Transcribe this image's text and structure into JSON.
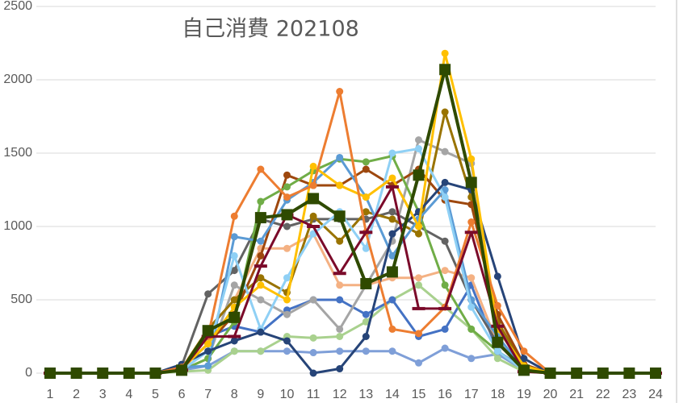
{
  "chart_data": {
    "type": "line",
    "title": "自己消費 202108",
    "categories": [
      "1",
      "2",
      "3",
      "4",
      "5",
      "6",
      "7",
      "8",
      "9",
      "10",
      "11",
      "12",
      "13",
      "14",
      "15",
      "16",
      "17",
      "18",
      "19",
      "20",
      "21",
      "22",
      "23",
      "24"
    ],
    "ylim": [
      0,
      2500
    ],
    "yticks": [
      0,
      500,
      1000,
      1500,
      2000,
      2500
    ],
    "grid": true,
    "series": [
      {
        "color": "#7f9fd8",
        "marker": "circle",
        "values": [
          0,
          0,
          0,
          0,
          0,
          20,
          50,
          150,
          150,
          150,
          140,
          150,
          150,
          150,
          70,
          170,
          100,
          130,
          20,
          0,
          0,
          0,
          0,
          0
        ]
      },
      {
        "color": "#a9d18e",
        "marker": "circle",
        "values": [
          0,
          0,
          0,
          0,
          0,
          10,
          20,
          150,
          150,
          250,
          240,
          250,
          350,
          500,
          600,
          450,
          300,
          100,
          10,
          0,
          0,
          0,
          0,
          0
        ]
      },
      {
        "color": "#4472c4",
        "marker": "circle",
        "values": [
          0,
          0,
          0,
          0,
          0,
          30,
          250,
          320,
          280,
          430,
          500,
          500,
          400,
          500,
          250,
          300,
          600,
          150,
          30,
          0,
          0,
          0,
          0,
          0
        ]
      },
      {
        "color": "#f4b183",
        "marker": "circle",
        "values": [
          0,
          0,
          0,
          0,
          0,
          30,
          300,
          500,
          850,
          850,
          950,
          600,
          600,
          650,
          650,
          700,
          650,
          200,
          40,
          0,
          0,
          0,
          0,
          0
        ]
      },
      {
        "color": "#636363",
        "marker": "circle",
        "values": [
          0,
          0,
          0,
          0,
          0,
          50,
          540,
          700,
          1050,
          1000,
          1050,
          1050,
          1050,
          1100,
          1000,
          900,
          500,
          200,
          30,
          0,
          0,
          0,
          0,
          0
        ]
      },
      {
        "color": "#a5a5a5",
        "marker": "circle",
        "values": [
          0,
          0,
          0,
          0,
          0,
          20,
          100,
          600,
          500,
          400,
          500,
          300,
          600,
          900,
          1590,
          1510,
          1430,
          300,
          40,
          0,
          0,
          0,
          0,
          0
        ]
      },
      {
        "color": "#997300",
        "marker": "circle",
        "values": [
          0,
          0,
          0,
          0,
          0,
          30,
          300,
          500,
          650,
          550,
          1070,
          900,
          1100,
          1050,
          950,
          1780,
          1200,
          350,
          50,
          0,
          0,
          0,
          0,
          0
        ]
      },
      {
        "color": "#9e480e",
        "marker": "circle",
        "values": [
          0,
          0,
          0,
          0,
          0,
          30,
          200,
          400,
          800,
          1350,
          1280,
          1280,
          1390,
          1280,
          1390,
          1180,
          1150,
          400,
          60,
          0,
          0,
          0,
          0,
          0
        ]
      },
      {
        "color": "#70ad47",
        "marker": "circle",
        "values": [
          0,
          0,
          0,
          0,
          0,
          20,
          100,
          350,
          1170,
          1270,
          1380,
          1460,
          1440,
          1480,
          1100,
          600,
          300,
          150,
          20,
          0,
          0,
          0,
          0,
          0
        ]
      },
      {
        "color": "#5b9bd5",
        "marker": "circle",
        "values": [
          0,
          0,
          0,
          0,
          0,
          40,
          50,
          930,
          900,
          1180,
          1300,
          1470,
          1200,
          800,
          1050,
          1250,
          500,
          250,
          30,
          0,
          0,
          0,
          0,
          0
        ]
      },
      {
        "color": "#8fd0f5",
        "marker": "circle",
        "values": [
          0,
          0,
          0,
          0,
          0,
          20,
          150,
          800,
          300,
          650,
          950,
          1100,
          850,
          1500,
          1530,
          1200,
          450,
          150,
          20,
          0,
          0,
          0,
          0,
          0
        ]
      },
      {
        "color": "#264478",
        "marker": "circle",
        "values": [
          0,
          0,
          0,
          0,
          0,
          60,
          150,
          220,
          280,
          220,
          0,
          30,
          250,
          950,
          1100,
          1300,
          1250,
          660,
          100,
          0,
          0,
          0,
          0,
          0
        ]
      },
      {
        "color": "#ffc000",
        "marker": "circle",
        "values": [
          0,
          0,
          0,
          0,
          0,
          30,
          200,
          450,
          600,
          500,
          1410,
          1280,
          1200,
          1330,
          1000,
          2180,
          1460,
          300,
          50,
          0,
          0,
          0,
          0,
          0
        ]
      },
      {
        "color": "#ed7d31",
        "marker": "circle",
        "values": [
          0,
          0,
          0,
          0,
          0,
          40,
          250,
          1070,
          1390,
          1200,
          1280,
          1920,
          960,
          300,
          270,
          450,
          1030,
          460,
          150,
          0,
          0,
          0,
          0,
          0
        ]
      },
      {
        "color": "#7b0a2a",
        "marker": "dash",
        "values": [
          0,
          0,
          0,
          0,
          0,
          20,
          250,
          250,
          730,
          1080,
          1000,
          680,
          960,
          1270,
          440,
          440,
          960,
          320,
          10,
          0,
          0,
          0,
          0,
          0
        ]
      },
      {
        "color": "#2f4a00",
        "marker": "square",
        "values": [
          0,
          0,
          0,
          0,
          0,
          20,
          290,
          380,
          1060,
          1080,
          1190,
          1070,
          610,
          690,
          1350,
          2070,
          1300,
          210,
          20,
          0,
          0,
          0,
          0,
          0
        ]
      }
    ]
  }
}
